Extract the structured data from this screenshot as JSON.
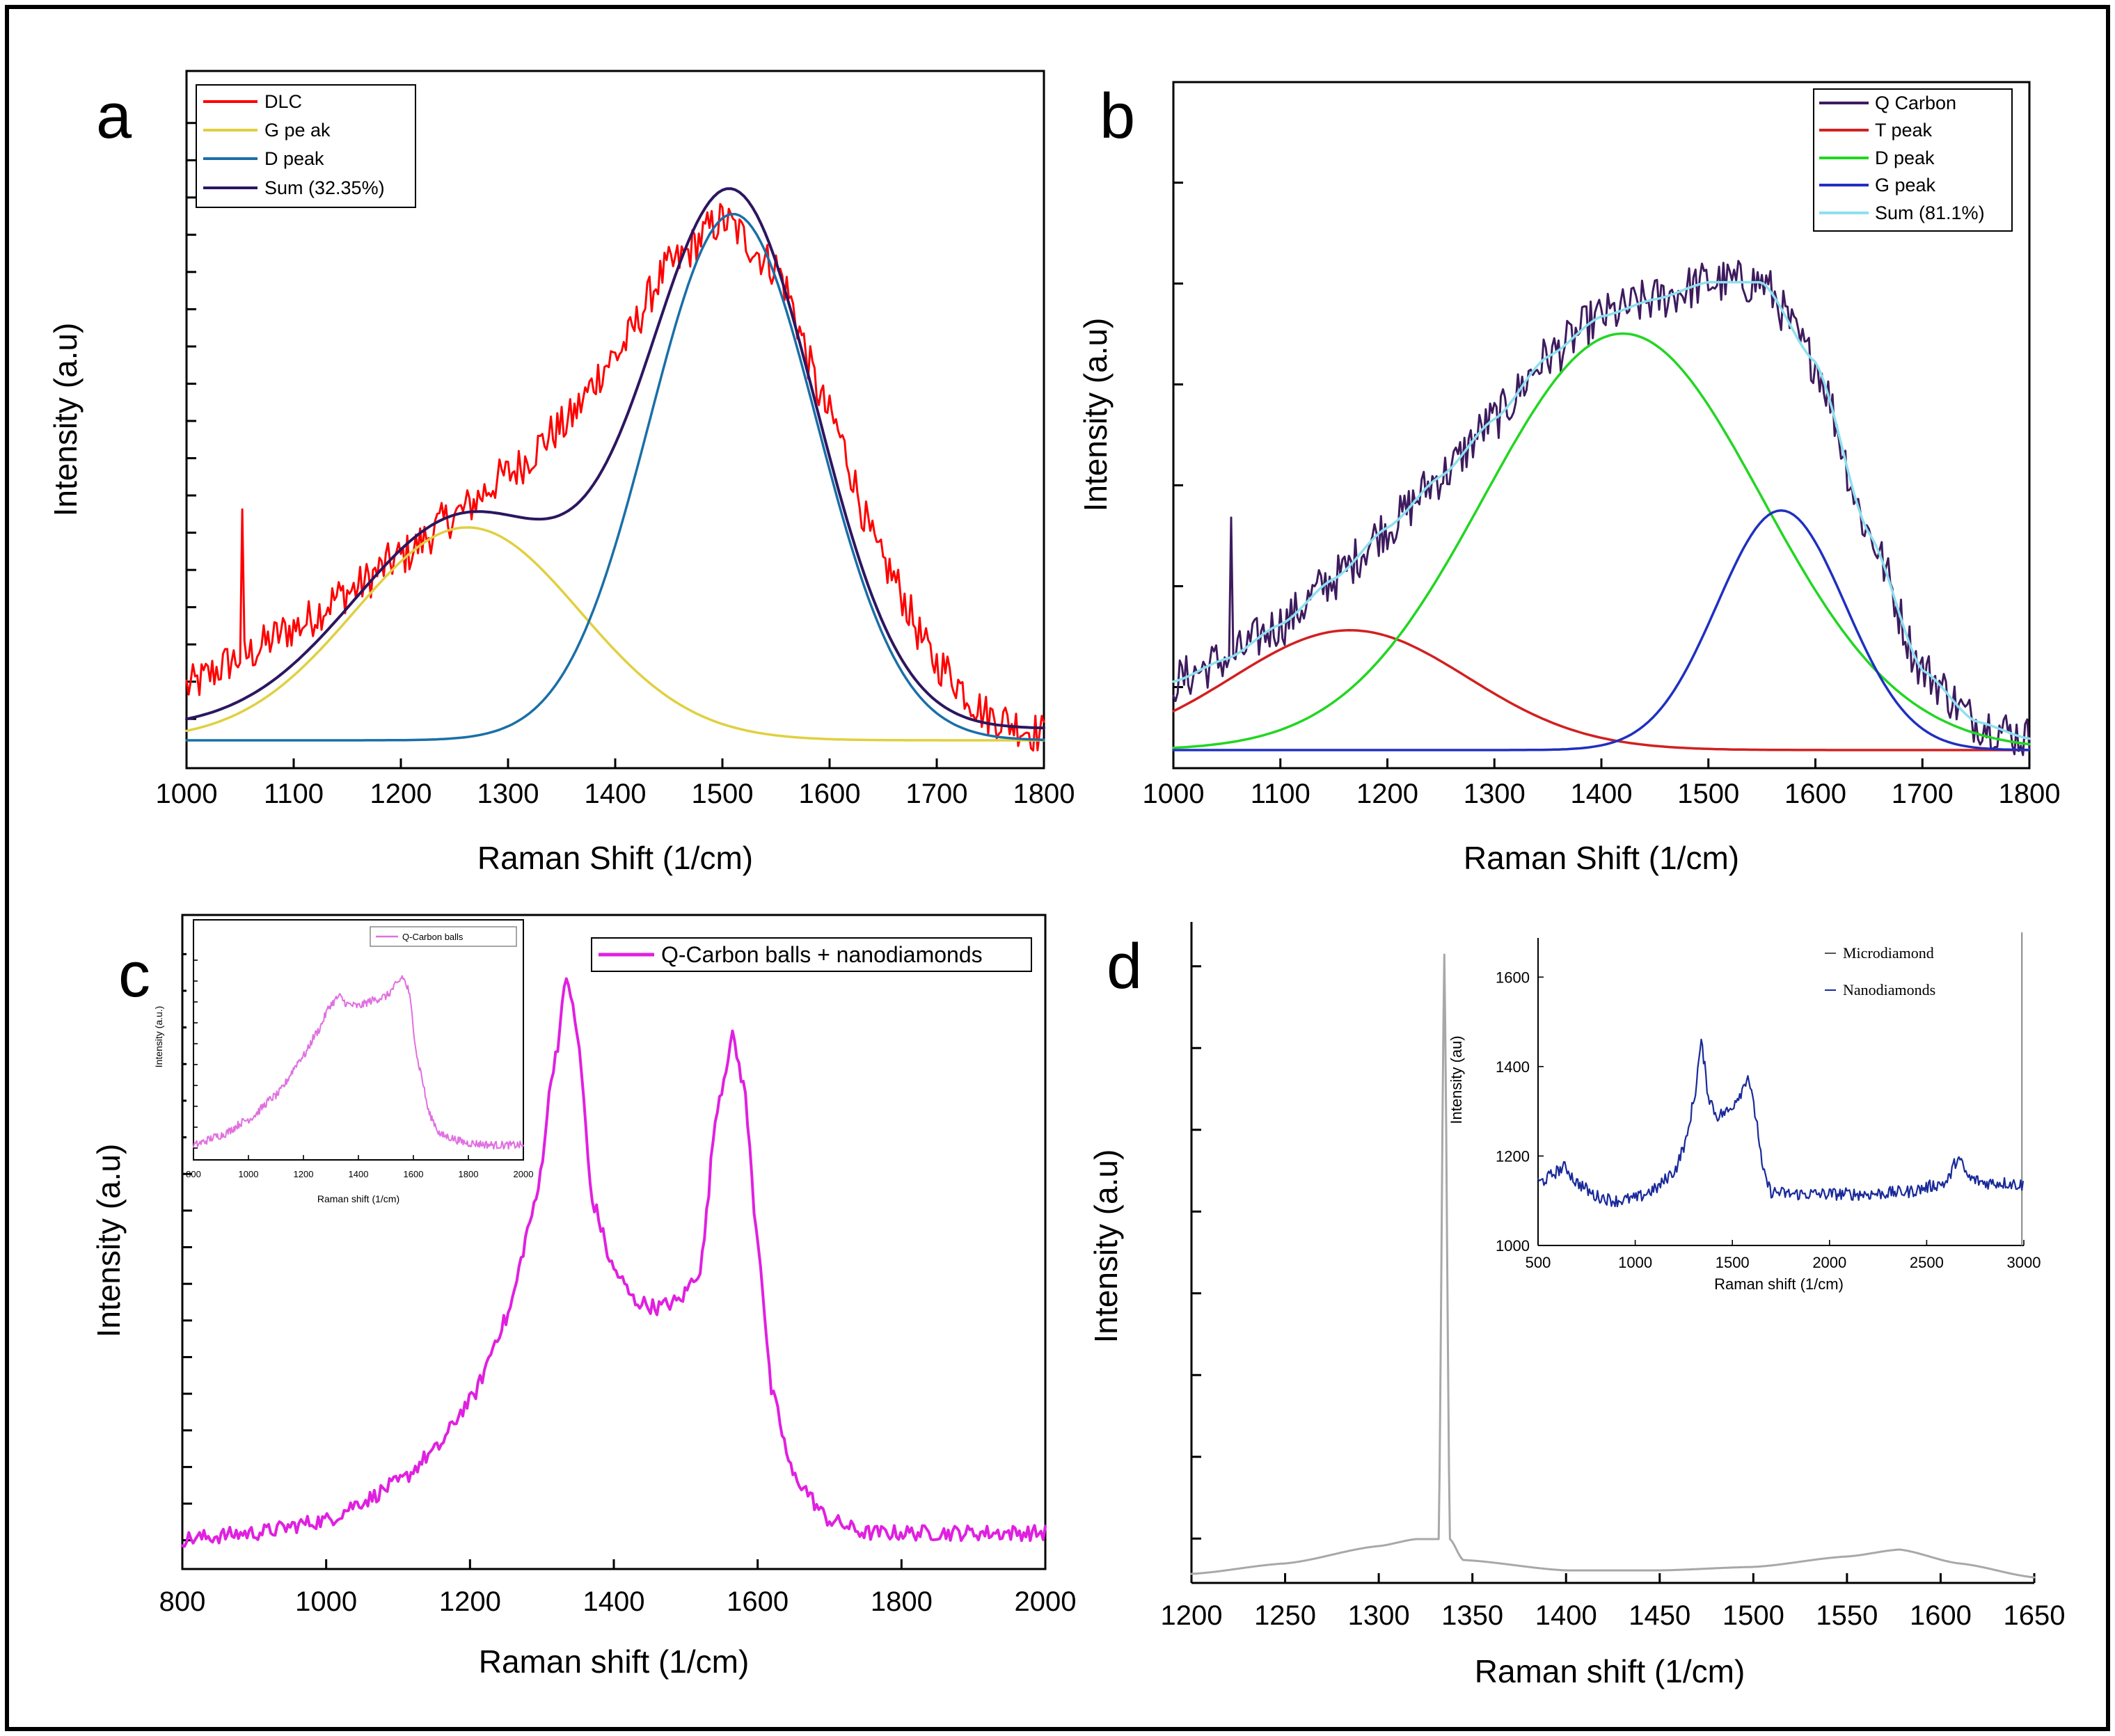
{
  "chart_data": [
    {
      "panel": "a",
      "type": "line",
      "xlabel": "Raman Shift (1/cm)",
      "ylabel": "Intensity (a.u)",
      "xlim": [
        1000,
        1800
      ],
      "xticks": [
        1000,
        1100,
        1200,
        1300,
        1400,
        1500,
        1600,
        1700,
        1800
      ],
      "ylim": [
        0,
        1
      ],
      "legend_position": "top-left",
      "series": [
        {
          "name": "DLC",
          "color": "#ff0000",
          "kind": "noisy",
          "x": [
            1000,
            1050,
            1100,
            1150,
            1200,
            1250,
            1300,
            1350,
            1400,
            1450,
            1500,
            1550,
            1600,
            1650,
            1700,
            1750,
            1800
          ],
          "y": [
            0.09,
            0.14,
            0.19,
            0.25,
            0.31,
            0.38,
            0.45,
            0.53,
            0.65,
            0.8,
            0.88,
            0.8,
            0.55,
            0.3,
            0.13,
            0.04,
            0.01
          ]
        },
        {
          "name": "G pe ak",
          "color": "#e0d040",
          "kind": "gauss",
          "center": 1262,
          "amplitude": 0.36,
          "sigma": 105,
          "baseline": 0.0
        },
        {
          "name": "D peak",
          "color": "#1a6fa8",
          "kind": "gauss",
          "center": 1510,
          "amplitude": 0.89,
          "sigma": 78,
          "baseline": 0.0
        },
        {
          "name": "Sum (32.35%)",
          "color": "#2c1660",
          "kind": "sum"
        }
      ]
    },
    {
      "panel": "b",
      "type": "line",
      "xlabel": "Raman Shift (1/cm)",
      "ylabel": "Intensity (a.u)",
      "xlim": [
        1000,
        1800
      ],
      "xticks": [
        1000,
        1100,
        1200,
        1300,
        1400,
        1500,
        1600,
        1700,
        1800
      ],
      "ylim": [
        0,
        1
      ],
      "legend_position": "top-right",
      "series": [
        {
          "name": "Q Carbon",
          "color": "#3e1b5e",
          "kind": "noisy",
          "x": [
            1000,
            1050,
            1100,
            1150,
            1200,
            1250,
            1300,
            1350,
            1400,
            1450,
            1500,
            1550,
            1600,
            1650,
            1700,
            1750,
            1800
          ],
          "y": [
            0.12,
            0.16,
            0.22,
            0.3,
            0.39,
            0.48,
            0.58,
            0.69,
            0.76,
            0.79,
            0.82,
            0.82,
            0.68,
            0.38,
            0.14,
            0.05,
            0.02
          ]
        },
        {
          "name": "T peak",
          "color": "#d22020",
          "kind": "gauss",
          "center": 1165,
          "amplitude": 0.21,
          "sigma": 110,
          "baseline": 0.0
        },
        {
          "name": "D peak",
          "color": "#22d622",
          "kind": "gauss",
          "center": 1420,
          "amplitude": 0.73,
          "sigma": 130,
          "baseline": 0.0
        },
        {
          "name": "G peak",
          "color": "#2030c0",
          "kind": "gauss",
          "center": 1568,
          "amplitude": 0.42,
          "sigma": 60,
          "baseline": 0.0
        },
        {
          "name": "Sum (81.1%)",
          "color": "#8ce0f0",
          "kind": "sum"
        }
      ]
    },
    {
      "panel": "c",
      "type": "line",
      "xlabel": "Raman shift (1/cm)",
      "ylabel": "Intensity (a.u)",
      "xlim": [
        800,
        2000
      ],
      "xticks": [
        800,
        1000,
        1200,
        1400,
        1600,
        1800,
        2000
      ],
      "ylim": [
        0,
        1
      ],
      "legend_position": "top-right",
      "series": [
        {
          "name": "Q-Carbon balls + nanodiamonds",
          "color": "#e020e0",
          "x": [
            800,
            900,
            1000,
            1050,
            1100,
            1150,
            1200,
            1250,
            1290,
            1320,
            1335,
            1350,
            1370,
            1400,
            1430,
            1460,
            1490,
            1520,
            1545,
            1565,
            1580,
            1600,
            1620,
            1650,
            1700,
            1750,
            1800,
            1900,
            2000
          ],
          "y": [
            0.02,
            0.03,
            0.05,
            0.08,
            0.11,
            0.16,
            0.24,
            0.37,
            0.55,
            0.8,
            0.92,
            0.82,
            0.56,
            0.45,
            0.4,
            0.39,
            0.4,
            0.45,
            0.72,
            0.82,
            0.75,
            0.5,
            0.25,
            0.12,
            0.05,
            0.03,
            0.03,
            0.03,
            0.03
          ]
        }
      ],
      "inset": {
        "legend": "Q-Carbon balls",
        "xlabel": "Raman shift (1/cm)",
        "ylabel": "Intensity (a.u.)",
        "xlim": [
          800,
          2000
        ],
        "xticks": [
          800,
          1000,
          1200,
          1400,
          1600,
          1800,
          2000
        ],
        "xtick_labels": [
          "800",
          "1000",
          "1200",
          "1400",
          "1600",
          "1800",
          "2000"
        ],
        "color": "#e070e0",
        "x": [
          800,
          900,
          1000,
          1100,
          1200,
          1250,
          1300,
          1330,
          1360,
          1400,
          1450,
          1500,
          1540,
          1560,
          1580,
          1620,
          1660,
          1700,
          1800,
          1900,
          2000
        ],
        "y": [
          0.05,
          0.1,
          0.18,
          0.3,
          0.5,
          0.62,
          0.76,
          0.8,
          0.76,
          0.75,
          0.78,
          0.8,
          0.86,
          0.9,
          0.84,
          0.45,
          0.2,
          0.1,
          0.06,
          0.05,
          0.05
        ]
      }
    },
    {
      "panel": "d",
      "type": "line",
      "xlabel": "Raman shift (1/cm)",
      "ylabel": "Intensity (a.u)",
      "xlim": [
        1200,
        1650
      ],
      "xticks": [
        1200,
        1250,
        1300,
        1350,
        1400,
        1450,
        1500,
        1550,
        1600,
        1650
      ],
      "ylim": [
        0,
        1
      ],
      "series": [
        {
          "name": "Microdiamond",
          "color": "#a8a8a8",
          "x": [
            1200,
            1250,
            1300,
            1320,
            1332,
            1335,
            1338,
            1345,
            1400,
            1450,
            1500,
            1550,
            1578,
            1610,
            1650
          ],
          "y": [
            0.01,
            0.025,
            0.05,
            0.06,
            0.06,
            0.9,
            0.06,
            0.03,
            0.015,
            0.015,
            0.02,
            0.035,
            0.045,
            0.025,
            0.005
          ]
        }
      ],
      "inset": {
        "xlabel": "Raman shift (1/cm)",
        "ylabel": "Intensity (au)",
        "xlim": [
          500,
          3000
        ],
        "ylim": [
          1000,
          1700
        ],
        "xticks": [
          500,
          1000,
          1500,
          2000,
          2500,
          3000
        ],
        "yticks": [
          1000,
          1200,
          1400,
          1600
        ],
        "legend": [
          "Microdiamond",
          "Nanodiamonds"
        ],
        "series": [
          {
            "name": "Nanodiamonds",
            "color": "#1a2a9a",
            "x": [
              500,
              640,
              700,
              800,
              900,
              1000,
              1100,
              1200,
              1260,
              1300,
              1340,
              1380,
              1420,
              1480,
              1540,
              1580,
              1620,
              1660,
              1700,
              1800,
              2000,
              2200,
              2400,
              2600,
              2660,
              2720,
              2800,
              2900,
              3000
            ],
            "y": [
              1140,
              1175,
              1140,
              1110,
              1100,
              1105,
              1125,
              1165,
              1230,
              1320,
              1450,
              1330,
              1290,
              1300,
              1340,
              1380,
              1290,
              1160,
              1120,
              1115,
              1115,
              1115,
              1120,
              1140,
              1195,
              1150,
              1140,
              1140,
              1135
            ]
          }
        ]
      }
    }
  ],
  "panel_letters": {
    "a": "a",
    "b": "b",
    "c": "c",
    "d": "d"
  }
}
